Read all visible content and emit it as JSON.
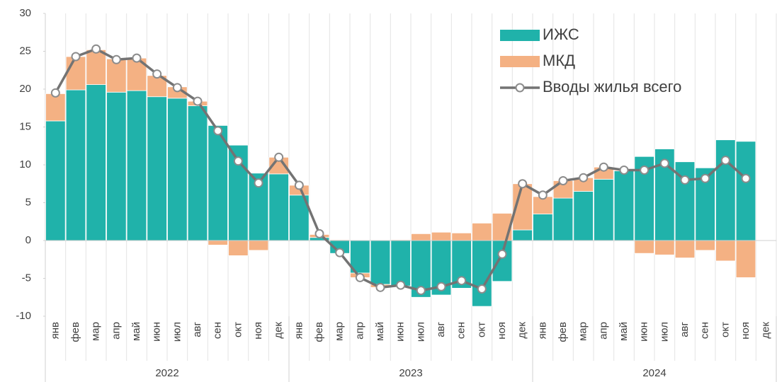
{
  "chart_data": {
    "type": "stacked_bar_line",
    "categories": [
      "янв",
      "фев",
      "мар",
      "апр",
      "май",
      "июн",
      "июл",
      "авг",
      "сен",
      "окт",
      "ноя",
      "дек",
      "янв",
      "фев",
      "мар",
      "апр",
      "май",
      "июн",
      "июл",
      "авг",
      "сен",
      "окт",
      "ноя",
      "дек",
      "янв",
      "фев",
      "мар",
      "апр",
      "май",
      "июн",
      "июл",
      "авг",
      "сен",
      "окт",
      "ноя",
      "дек"
    ],
    "years": [
      "2022",
      "2023",
      "2024"
    ],
    "series": [
      {
        "name": "ИЖС",
        "kind": "bar",
        "color": "#20b2aa",
        "values": [
          15.8,
          19.9,
          20.6,
          19.6,
          19.8,
          19.0,
          18.8,
          17.8,
          15.2,
          12.6,
          8.9,
          8.8,
          6.0,
          0.4,
          -1.7,
          -4.3,
          -5.8,
          -6.0,
          -7.5,
          -7.2,
          -6.3,
          -8.7,
          -5.4,
          1.4,
          3.5,
          5.6,
          6.5,
          8.1,
          9.2,
          11.1,
          12.1,
          10.4,
          9.6,
          13.3,
          13.1,
          null
        ]
      },
      {
        "name": "МКД",
        "kind": "bar",
        "color": "#f4b183",
        "values": [
          3.6,
          4.4,
          4.6,
          4.4,
          4.3,
          2.8,
          1.5,
          0.6,
          -0.6,
          -2.0,
          -1.3,
          2.2,
          1.3,
          0.4,
          0.1,
          -0.6,
          -0.4,
          0.1,
          0.9,
          1.1,
          1.0,
          2.3,
          3.6,
          6.1,
          2.3,
          2.3,
          1.8,
          1.6,
          0.1,
          -1.7,
          -1.9,
          -2.3,
          -1.3,
          -2.7,
          -4.9,
          null
        ]
      },
      {
        "name": "Вводы жилья всего",
        "kind": "line",
        "color": "#737373",
        "values": [
          19.5,
          24.3,
          25.3,
          23.9,
          24.1,
          22.0,
          20.2,
          18.4,
          14.5,
          10.5,
          7.6,
          11.0,
          7.3,
          0.9,
          -1.6,
          -4.9,
          -6.2,
          -5.9,
          -6.6,
          -6.1,
          -5.3,
          -6.4,
          -1.8,
          7.5,
          6.0,
          7.9,
          8.3,
          9.7,
          9.3,
          9.3,
          10.2,
          8.0,
          8.2,
          10.6,
          8.2,
          null
        ]
      }
    ],
    "ylim": [
      -10,
      30
    ],
    "yticks": [
      -10,
      -5,
      0,
      5,
      10,
      15,
      20,
      25,
      30
    ],
    "legend": "top-right"
  }
}
